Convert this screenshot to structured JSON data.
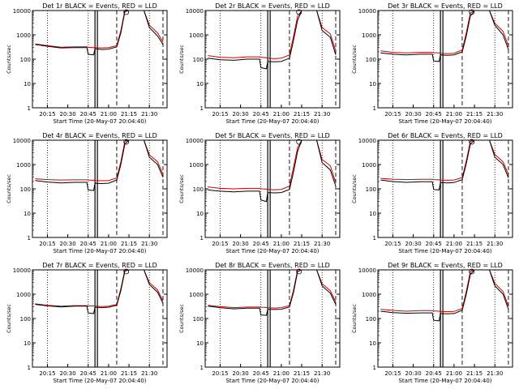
{
  "colors": {
    "events": "#000000",
    "lld": "#cc0000",
    "background": "#ffffff"
  },
  "x_tick_labels": [
    "20:15",
    "20:30",
    "20:45",
    "21:00",
    "21:15",
    "21:30"
  ],
  "y_tick_labels": [
    "1",
    "10",
    "100",
    "1000",
    "10000"
  ],
  "ylabel": "Counts/sec",
  "xlabel": "Start Time (20-May-07 20:04:40)",
  "chart_data": [
    {
      "type": "line",
      "title": "Det 1r BLACK = Events, RED = LLD",
      "xlabel": "Start Time (20-May-07 20:04:40)",
      "ylabel": "Counts/sec",
      "yscale": "log",
      "ylim": [
        1,
        10000
      ],
      "x": [
        "20:06",
        "20:15",
        "20:25",
        "20:35",
        "20:44",
        "20:45",
        "20:49",
        "20:50",
        "20:55",
        "21:00",
        "21:06",
        "21:09",
        "21:12",
        "21:15",
        "21:20",
        "21:26",
        "21:30",
        "21:36",
        "21:40"
      ],
      "series": [
        {
          "name": "Events",
          "values": [
            400,
            340,
            290,
            300,
            300,
            160,
            150,
            270,
            250,
            260,
            320,
            1200,
            9000,
            10000,
            10000,
            10000,
            2000,
            900,
            400
          ]
        },
        {
          "name": "LLD",
          "values": [
            420,
            360,
            310,
            320,
            320,
            310,
            300,
            300,
            290,
            300,
            360,
            1500,
            10000,
            10000,
            10000,
            10000,
            2500,
            1200,
            500
          ]
        }
      ]
    },
    {
      "type": "line",
      "title": "Det 2r BLACK = Events, RED = LLD",
      "xlabel": "Start Time (20-May-07 20:04:40)",
      "ylabel": "Counts/sec",
      "yscale": "log",
      "ylim": [
        1,
        10000
      ],
      "x": [
        "20:06",
        "20:15",
        "20:25",
        "20:35",
        "20:44",
        "20:45",
        "20:49",
        "20:50",
        "20:55",
        "21:00",
        "21:06",
        "21:09",
        "21:12",
        "21:15",
        "21:20",
        "21:26",
        "21:30",
        "21:36",
        "21:40"
      ],
      "series": [
        {
          "name": "Events",
          "values": [
            110,
            95,
            90,
            100,
            100,
            45,
            40,
            80,
            78,
            80,
            110,
            600,
            4000,
            10000,
            10000,
            10000,
            1500,
            800,
            150
          ]
        },
        {
          "name": "LLD",
          "values": [
            140,
            120,
            115,
            125,
            125,
            120,
            115,
            110,
            105,
            110,
            150,
            900,
            6000,
            10000,
            10000,
            10000,
            2000,
            1100,
            220
          ]
        }
      ]
    },
    {
      "type": "line",
      "title": "Det 3r BLACK = Events, RED = LLD",
      "xlabel": "Start Time (20-May-07 20:04:40)",
      "ylabel": "Counts/sec",
      "yscale": "log",
      "ylim": [
        1,
        10000
      ],
      "x": [
        "20:06",
        "20:15",
        "20:25",
        "20:35",
        "20:44",
        "20:45",
        "20:49",
        "20:50",
        "20:55",
        "21:00",
        "21:06",
        "21:09",
        "21:12",
        "21:15",
        "21:20",
        "21:26",
        "21:30",
        "21:36",
        "21:40"
      ],
      "series": [
        {
          "name": "Events",
          "values": [
            180,
            160,
            150,
            160,
            160,
            85,
            80,
            150,
            145,
            150,
            200,
            900,
            6000,
            10000,
            10000,
            10000,
            2500,
            1000,
            250
          ]
        },
        {
          "name": "LLD",
          "values": [
            220,
            190,
            180,
            190,
            190,
            185,
            180,
            175,
            170,
            175,
            240,
            1200,
            8000,
            10000,
            10000,
            10000,
            3000,
            1400,
            350
          ]
        }
      ]
    },
    {
      "type": "line",
      "title": "Det 4r BLACK = Events, RED = LLD",
      "xlabel": "Start Time (20-May-07 20:04:40)",
      "ylabel": "Counts/sec",
      "yscale": "log",
      "ylim": [
        1,
        10000
      ],
      "x": [
        "20:06",
        "20:15",
        "20:25",
        "20:35",
        "20:44",
        "20:45",
        "20:49",
        "20:50",
        "20:55",
        "21:00",
        "21:06",
        "21:09",
        "21:12",
        "21:15",
        "21:20",
        "21:26",
        "21:30",
        "21:36",
        "21:40"
      ],
      "series": [
        {
          "name": "Events",
          "values": [
            220,
            190,
            175,
            185,
            185,
            90,
            85,
            170,
            165,
            170,
            230,
            1000,
            7000,
            10000,
            10000,
            10000,
            2000,
            1000,
            300
          ]
        },
        {
          "name": "LLD",
          "values": [
            260,
            240,
            230,
            235,
            235,
            230,
            225,
            220,
            215,
            220,
            280,
            1300,
            9000,
            10000,
            10000,
            10000,
            2500,
            1300,
            400
          ]
        }
      ]
    },
    {
      "type": "line",
      "title": "Det 5r BLACK = Events, RED = LLD",
      "xlabel": "Start Time (20-May-07 20:04:40)",
      "ylabel": "Counts/sec",
      "yscale": "log",
      "ylim": [
        1,
        10000
      ],
      "x": [
        "20:06",
        "20:15",
        "20:25",
        "20:35",
        "20:44",
        "20:45",
        "20:49",
        "20:50",
        "20:55",
        "21:00",
        "21:06",
        "21:09",
        "21:12",
        "21:15",
        "21:20",
        "21:26",
        "21:30",
        "21:36",
        "21:40"
      ],
      "series": [
        {
          "name": "Events",
          "values": [
            90,
            80,
            75,
            80,
            80,
            35,
            30,
            70,
            68,
            70,
            95,
            500,
            3500,
            10000,
            10000,
            10000,
            1200,
            600,
            130
          ]
        },
        {
          "name": "LLD",
          "values": [
            120,
            105,
            100,
            105,
            105,
            100,
            98,
            95,
            92,
            95,
            130,
            800,
            5000,
            10000,
            10000,
            10000,
            1600,
            900,
            180
          ]
        }
      ]
    },
    {
      "type": "line",
      "title": "Det 6r BLACK = Events, RED = LLD",
      "xlabel": "Start Time (20-May-07 20:04:40)",
      "ylabel": "Counts/sec",
      "yscale": "log",
      "ylim": [
        1,
        10000
      ],
      "x": [
        "20:06",
        "20:15",
        "20:25",
        "20:35",
        "20:44",
        "20:45",
        "20:49",
        "20:50",
        "20:55",
        "21:00",
        "21:06",
        "21:09",
        "21:12",
        "21:15",
        "21:20",
        "21:26",
        "21:30",
        "21:36",
        "21:40"
      ],
      "series": [
        {
          "name": "Events",
          "values": [
            230,
            200,
            185,
            195,
            195,
            95,
            90,
            180,
            175,
            180,
            240,
            1100,
            7000,
            10000,
            10000,
            10000,
            2000,
            1000,
            280
          ]
        },
        {
          "name": "LLD",
          "values": [
            270,
            250,
            240,
            245,
            245,
            240,
            235,
            230,
            225,
            230,
            290,
            1400,
            9000,
            10000,
            10000,
            10000,
            2600,
            1300,
            380
          ]
        }
      ]
    },
    {
      "type": "line",
      "title": "Det 7r BLACK = Events, RED = LLD",
      "xlabel": "Start Time (20-May-07 20:04:40)",
      "ylabel": "Counts/sec",
      "yscale": "log",
      "ylim": [
        1,
        10000
      ],
      "x": [
        "20:06",
        "20:15",
        "20:25",
        "20:35",
        "20:44",
        "20:45",
        "20:49",
        "20:50",
        "20:55",
        "21:00",
        "21:06",
        "21:09",
        "21:12",
        "21:15",
        "21:20",
        "21:26",
        "21:30",
        "21:36",
        "21:40"
      ],
      "series": [
        {
          "name": "Events",
          "values": [
            380,
            330,
            300,
            320,
            320,
            170,
            160,
            290,
            280,
            290,
            350,
            1400,
            9000,
            10000,
            10000,
            10000,
            2500,
            1200,
            420
          ]
        },
        {
          "name": "LLD",
          "values": [
            400,
            350,
            320,
            340,
            340,
            330,
            325,
            320,
            310,
            320,
            380,
            1700,
            10000,
            10000,
            10000,
            10000,
            3000,
            1500,
            520
          ]
        }
      ]
    },
    {
      "type": "line",
      "title": "Det 8r BLACK = Events, RED = LLD",
      "xlabel": "Start Time (20-May-07 20:04:40)",
      "ylabel": "Counts/sec",
      "yscale": "log",
      "ylim": [
        1,
        10000
      ],
      "x": [
        "20:06",
        "20:15",
        "20:25",
        "20:35",
        "20:44",
        "20:45",
        "20:49",
        "20:50",
        "20:55",
        "21:00",
        "21:06",
        "21:09",
        "21:12",
        "21:15",
        "21:20",
        "21:26",
        "21:30",
        "21:36",
        "21:40"
      ],
      "series": [
        {
          "name": "Events",
          "values": [
            320,
            280,
            250,
            265,
            265,
            140,
            135,
            240,
            235,
            240,
            300,
            1200,
            8500,
            10000,
            10000,
            10000,
            2200,
            1100,
            380
          ]
        },
        {
          "name": "LLD",
          "values": [
            350,
            310,
            280,
            295,
            295,
            290,
            285,
            280,
            270,
            280,
            340,
            1500,
            10000,
            10000,
            10000,
            10000,
            2700,
            1400,
            480
          ]
        }
      ]
    },
    {
      "type": "line",
      "title": "Det 9r BLACK = Events, RED = LLD",
      "xlabel": "Start Time (20-May-07 20:04:40)",
      "ylabel": "Counts/sec",
      "yscale": "log",
      "ylim": [
        1,
        10000
      ],
      "x": [
        "20:06",
        "20:15",
        "20:25",
        "20:35",
        "20:44",
        "20:45",
        "20:49",
        "20:50",
        "20:55",
        "21:00",
        "21:06",
        "21:09",
        "21:12",
        "21:15",
        "21:20",
        "21:26",
        "21:30",
        "21:36",
        "21:40"
      ],
      "series": [
        {
          "name": "Events",
          "values": [
            200,
            175,
            165,
            170,
            170,
            85,
            80,
            160,
            155,
            160,
            220,
            1000,
            6500,
            10000,
            10000,
            10000,
            2200,
            1000,
            240
          ]
        },
        {
          "name": "LLD",
          "values": [
            240,
            215,
            200,
            210,
            210,
            205,
            200,
            195,
            190,
            195,
            260,
            1300,
            8500,
            10000,
            10000,
            10000,
            2800,
            1300,
            320
          ]
        }
      ]
    }
  ]
}
